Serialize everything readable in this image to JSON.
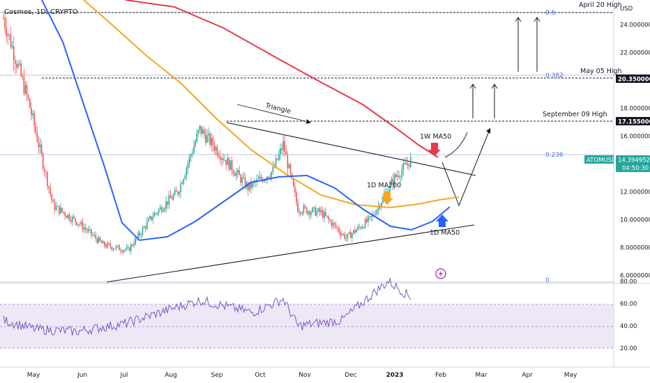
{
  "header": {
    "symbol": "Cosmos, 1D, CRYPTO"
  },
  "axis": {
    "currency": "USD",
    "price_ticks": [
      "24.0000000",
      "22.0000000",
      "20.0000000",
      "18.0000000",
      "16.0000000",
      "14.0000000",
      "12.0000000",
      "10.0000000",
      "8.0000000",
      "6.0000000"
    ],
    "rsi_ticks": [
      "80.00",
      "60.00",
      "40.00",
      "20.00"
    ],
    "months": [
      "May",
      "Jun",
      "Jul",
      "Aug",
      "Sep",
      "Oct",
      "Nov",
      "Dec",
      "2023",
      "Feb",
      "Mar",
      "Apr",
      "May"
    ]
  },
  "labels": {
    "april20": "April 20 High",
    "may05": "May 05 High",
    "may05_price": "20.3500000",
    "sep09": "September 09 High",
    "sep09_price": "17.1550000",
    "ticker": "ATOMUSD",
    "ticker_price": "14.3949520",
    "ticker_timer": "04:50:30",
    "fib_05": "0.5",
    "fib_0382": "0.382",
    "fib_0236": "0.236",
    "fib_0": "0",
    "triangle": "Triangle",
    "w_ma50": "1W MA50",
    "d_ma200": "1D MA200",
    "d_ma50": "1D MA50"
  },
  "colors": {
    "ma_1w_50": "#e53a48",
    "ma_1d_200": "#f5a623",
    "ma_1d_50": "#2962ff",
    "bull": "#26a69a",
    "bear": "#ef5350",
    "rsi": "#7e57c2",
    "rsi_band": "#ede7f6",
    "fib": "#4a78d0"
  },
  "chart_data": [
    {
      "type": "candlestick",
      "title": "Cosmos, 1D, CRYPTO",
      "ylabel": "USD",
      "ylim": [
        5.6,
        25.7
      ],
      "x": [
        "2022-04-28",
        "2022-05-15",
        "2022-06-01",
        "2022-06-18",
        "2022-07-05",
        "2022-07-22",
        "2022-08-08",
        "2022-08-25",
        "2022-09-09",
        "2022-09-25",
        "2022-10-12",
        "2022-10-29",
        "2022-11-05",
        "2022-11-15",
        "2022-12-01",
        "2022-12-18",
        "2023-01-04",
        "2023-01-20",
        "2023-02-01"
      ],
      "series": [
        {
          "name": "close",
          "values": [
            24.5,
            18.5,
            11.0,
            9.8,
            8.2,
            7.8,
            10.3,
            12.0,
            16.5,
            14.5,
            12.3,
            13.5,
            15.4,
            10.8,
            10.5,
            8.7,
            10.1,
            13.0,
            14.39
          ]
        }
      ]
    },
    {
      "type": "line",
      "ylim": [
        20,
        80
      ],
      "x": [
        "2022-04-28",
        "2022-05-20",
        "2022-06-17",
        "2022-07-20",
        "2022-08-20",
        "2022-09-09",
        "2022-10-15",
        "2022-11-05",
        "2022-11-15",
        "2022-12-15",
        "2023-01-08",
        "2023-01-16",
        "2023-02-01"
      ],
      "series": [
        {
          "name": "RSI",
          "values": [
            45,
            37,
            35,
            42,
            55,
            63,
            52,
            64,
            40,
            45,
            72,
            80,
            65
          ]
        }
      ]
    }
  ]
}
